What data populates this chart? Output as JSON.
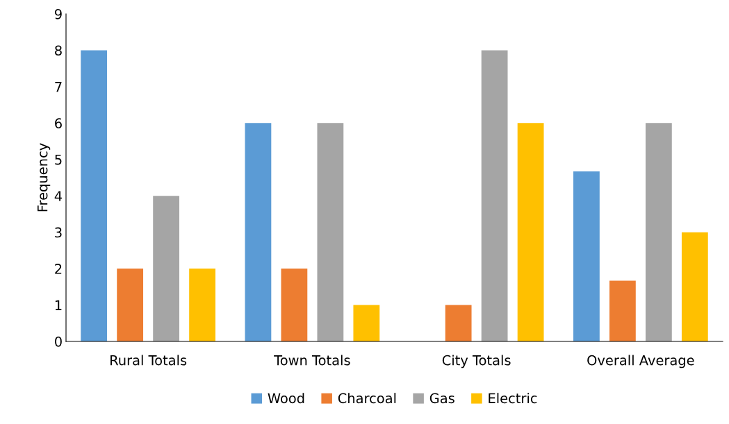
{
  "chart_data": {
    "type": "bar",
    "ylabel": "Frequency",
    "categories": [
      "Rural Totals",
      "Town Totals",
      "City Totals",
      "Overall Average"
    ],
    "series": [
      {
        "name": "Wood",
        "color": "#5b9bd5",
        "values": [
          8,
          6,
          0,
          4.67
        ]
      },
      {
        "name": "Charcoal",
        "color": "#ed7d31",
        "values": [
          2,
          2,
          1,
          1.67
        ]
      },
      {
        "name": "Gas",
        "color": "#a5a5a5",
        "values": [
          4,
          6,
          8,
          6
        ]
      },
      {
        "name": "Electric",
        "color": "#ffc000",
        "values": [
          2,
          1,
          6,
          3
        ]
      }
    ],
    "ylim": [
      0,
      9
    ],
    "yticks": [
      0,
      1,
      2,
      3,
      4,
      5,
      6,
      7,
      8,
      9
    ],
    "grid": false,
    "legend": "bottom"
  }
}
